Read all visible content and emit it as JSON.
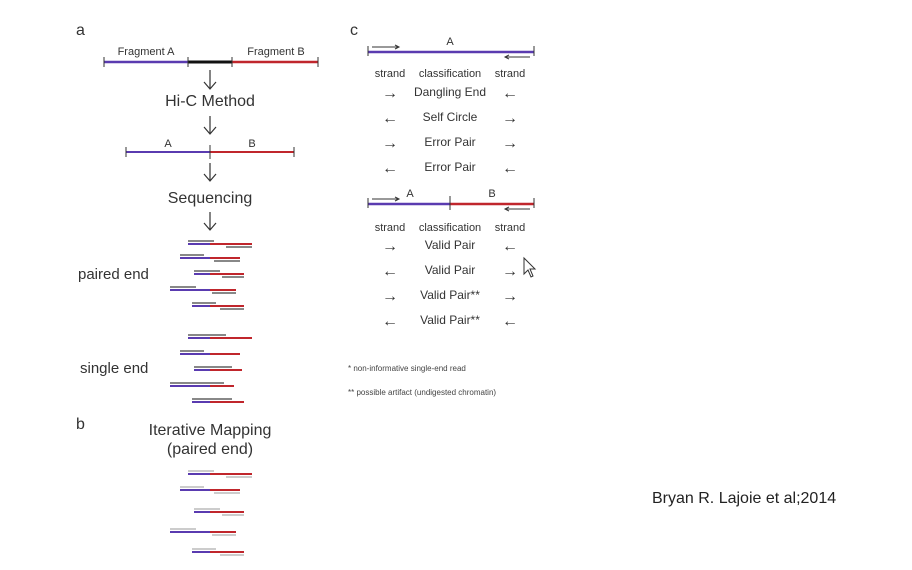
{
  "panels": {
    "a": "a",
    "b": "b",
    "c": "c"
  },
  "panel_a": {
    "fragment_a": "Fragment A",
    "fragment_b": "Fragment B",
    "method": "Hi-C Method",
    "label_a": "A",
    "label_b": "B",
    "sequencing": "Sequencing",
    "paired_end": "paired end",
    "single_end": "single end"
  },
  "panel_b": {
    "title_line1": "Iterative Mapping",
    "title_line2": "(paired end)"
  },
  "panel_c": {
    "top_label": "A",
    "header_strand_left": "strand",
    "header_classification": "classification",
    "header_strand_right": "strand",
    "rows_top": [
      {
        "left": "→",
        "label": "Dangling End",
        "right": "←"
      },
      {
        "left": "←",
        "label": "Self Circle",
        "right": "→"
      },
      {
        "left": "→",
        "label": "Error Pair",
        "right": "→"
      },
      {
        "left": "←",
        "label": "Error Pair",
        "right": "←"
      }
    ],
    "mid_label_a": "A",
    "mid_label_b": "B",
    "rows_bottom": [
      {
        "left": "→",
        "label": "Valid Pair",
        "right": "←"
      },
      {
        "left": "←",
        "label": "Valid Pair",
        "right": "→"
      },
      {
        "left": "→",
        "label": "Valid Pair**",
        "right": "→"
      },
      {
        "left": "←",
        "label": "Valid Pair**",
        "right": "←"
      }
    ],
    "note1": "*   non-informative single-end read",
    "note2": "**  possible artifact (undigested chromatin)"
  },
  "citation": "Bryan R. Lajoie et al;2014",
  "colors": {
    "blue": "#5a3bb0",
    "red": "#c0262c",
    "black": "#111111",
    "gray": "#9a9a9a"
  },
  "icons": {
    "cursor": "mouse-pointer-icon"
  }
}
